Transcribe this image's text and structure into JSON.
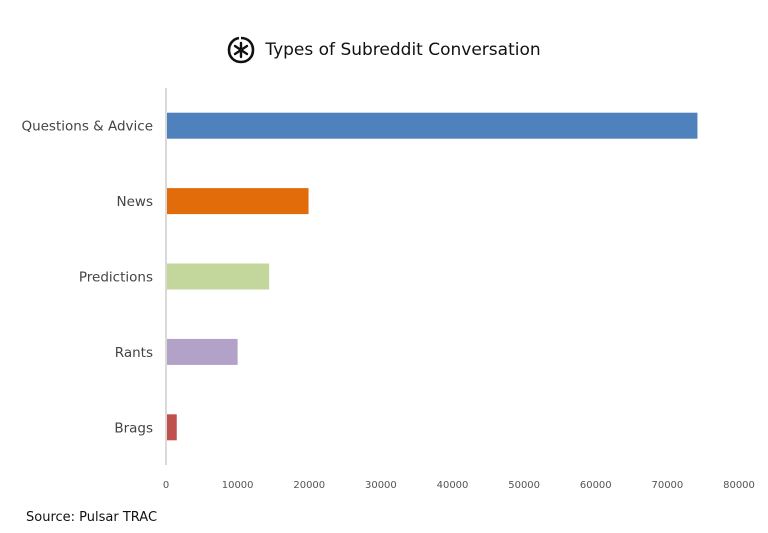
{
  "chart_data": {
    "type": "bar",
    "orientation": "horizontal",
    "title": "Types of Subreddit Conversation",
    "categories": [
      "Questions & Advice",
      "News",
      "Predictions",
      "Rants",
      "Brags"
    ],
    "values": [
      74200,
      19900,
      14400,
      10000,
      1500
    ],
    "colors": [
      "#4f81bd",
      "#e36c0a",
      "#c3d69b",
      "#b3a2c7",
      "#c0504d"
    ],
    "xlim": [
      0,
      80000
    ],
    "xticks": [
      "0",
      "10000",
      "20000",
      "30000",
      "40000",
      "50000",
      "60000",
      "70000",
      "80000"
    ],
    "xlabel": "",
    "ylabel": "",
    "grid": false,
    "legend": "none"
  },
  "logo_icon": "pulsar-asterisk-logo",
  "source": "Source: Pulsar TRAC"
}
